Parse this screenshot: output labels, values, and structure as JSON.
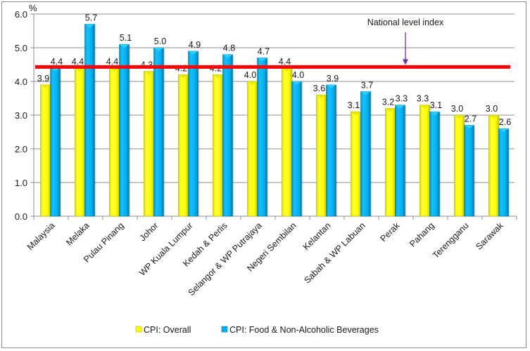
{
  "chart_data": {
    "type": "bar",
    "title": "",
    "xlabel": "",
    "ylabel": "%",
    "ylim": [
      0,
      6
    ],
    "yticks": [
      "0.0",
      "1.0",
      "2.0",
      "3.0",
      "4.0",
      "5.0",
      "6.0"
    ],
    "grid": true,
    "categories": [
      "Malaysia",
      "Melaka",
      "Pulau Pinang",
      "Johor",
      "WP Kuala Lumpur",
      "Kedah & Perlis",
      "Selangor & WP Putrajaya",
      "Negeri Sembilan",
      "Kelantan",
      "Sabah & WP Labuan",
      "Perak",
      "Pahang",
      "Terengganu",
      "Sarawak"
    ],
    "series": [
      {
        "name": "CPI: Overall",
        "color": "#ffff00",
        "values": [
          3.9,
          4.4,
          4.4,
          4.3,
          4.2,
          4.2,
          4.0,
          4.4,
          3.6,
          3.1,
          3.2,
          3.3,
          3.0,
          3.0
        ]
      },
      {
        "name": "CPI: Food & Non-Alcoholic Beverages",
        "color": "#00b0f0",
        "values": [
          4.4,
          5.7,
          5.1,
          5.0,
          4.9,
          4.8,
          4.7,
          4.0,
          3.9,
          3.7,
          3.3,
          3.1,
          2.7,
          2.6
        ]
      }
    ],
    "reference_line": {
      "label": "National level index",
      "value": 4.45,
      "color": "#ff0000"
    },
    "annotation_arrow_color": "#7030a0",
    "legend": "bottom"
  }
}
